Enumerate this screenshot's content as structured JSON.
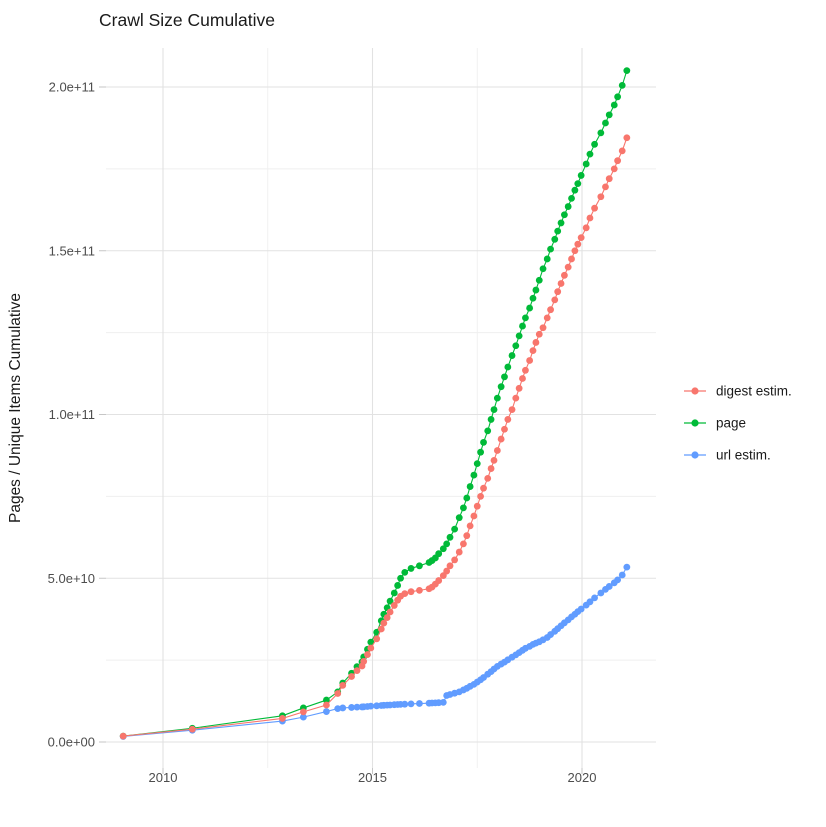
{
  "page": {
    "background": "#ffffff",
    "kind": "static ggplot-style chart image"
  },
  "chart_data": {
    "type": "scatter",
    "title": "Crawl Size Cumulative",
    "xlabel": "",
    "ylabel": "Pages / Unique Items Cumulative",
    "x_unit": "year (decimal)",
    "y_unit": "count; values_e9 are in billions (1e9)",
    "grid": true,
    "legend_position": "right",
    "xlim": [
      2008.6,
      2021.8
    ],
    "ylim_e9": [
      -8,
      212
    ],
    "x_major_ticks": [
      2010,
      2015,
      2020
    ],
    "x_tick_labels": [
      "2010",
      "2015",
      "2020"
    ],
    "x_minor_ticks": [
      2012.5,
      2017.5
    ],
    "y_major_ticks_e9": [
      0,
      50,
      100,
      150,
      200
    ],
    "y_tick_labels": [
      "0.0e+00",
      "5.0e+10",
      "1.0e+11",
      "1.5e+11",
      "2.0e+11"
    ],
    "y_minor_ticks_e9": [
      25,
      75,
      125,
      175
    ],
    "x": [
      2009.05,
      2010.7,
      2012.85,
      2013.35,
      2013.9,
      2014.17,
      2014.29,
      2014.5,
      2014.63,
      2014.75,
      2014.79,
      2014.88,
      2014.96,
      2015.1,
      2015.21,
      2015.27,
      2015.35,
      2015.42,
      2015.52,
      2015.6,
      2015.67,
      2015.77,
      2015.92,
      2016.12,
      2016.35,
      2016.42,
      2016.5,
      2016.58,
      2016.69,
      2016.77,
      2016.85,
      2016.96,
      2017.07,
      2017.17,
      2017.25,
      2017.33,
      2017.42,
      2017.5,
      2017.58,
      2017.65,
      2017.75,
      2017.83,
      2017.9,
      2017.98,
      2018.07,
      2018.15,
      2018.23,
      2018.33,
      2018.42,
      2018.5,
      2018.58,
      2018.65,
      2018.75,
      2018.83,
      2018.9,
      2018.98,
      2019.07,
      2019.17,
      2019.25,
      2019.35,
      2019.42,
      2019.5,
      2019.58,
      2019.67,
      2019.75,
      2019.83,
      2019.9,
      2019.98,
      2020.1,
      2020.19,
      2020.3,
      2020.45,
      2020.56,
      2020.65,
      2020.77,
      2020.85,
      2020.96,
      2021.07
    ],
    "series": [
      {
        "name": "digest estim.",
        "color": "#F8766D",
        "values_e9": [
          1.8,
          3.9,
          7.2,
          9.2,
          11.3,
          14.8,
          17.3,
          20.0,
          21.8,
          23.2,
          24.6,
          26.7,
          28.7,
          31.5,
          34.5,
          36.3,
          38.0,
          39.7,
          41.7,
          43.3,
          44.5,
          45.3,
          45.9,
          46.3,
          46.8,
          47.3,
          48.2,
          49.3,
          50.8,
          52.2,
          53.8,
          55.6,
          58.0,
          60.5,
          63.0,
          66.0,
          69.0,
          72.0,
          75.0,
          77.5,
          80.5,
          83.5,
          86.0,
          89.0,
          92.5,
          95.5,
          98.5,
          101.5,
          105.0,
          108.0,
          111.0,
          113.5,
          116.5,
          119.5,
          122.0,
          124.5,
          126.5,
          129.5,
          132.0,
          135.0,
          137.5,
          140.0,
          142.5,
          145.0,
          147.5,
          150.0,
          152.0,
          154.0,
          157.0,
          160.0,
          163.0,
          166.5,
          169.5,
          172.0,
          175.0,
          177.5,
          180.5,
          184.5
        ]
      },
      {
        "name": "page",
        "color": "#00BA38",
        "values_e9": [
          1.8,
          4.2,
          8.0,
          10.4,
          12.8,
          15.3,
          18.0,
          21.0,
          23.0,
          24.5,
          26.0,
          28.3,
          30.5,
          33.5,
          37.0,
          39.0,
          41.0,
          43.0,
          45.5,
          47.8,
          50.0,
          51.8,
          53.0,
          53.8,
          54.8,
          55.4,
          56.2,
          57.5,
          59.0,
          60.5,
          62.5,
          65.0,
          68.5,
          71.5,
          74.5,
          78.0,
          81.5,
          85.0,
          88.5,
          91.5,
          95.0,
          98.5,
          101.5,
          105.0,
          108.5,
          111.5,
          114.5,
          118.0,
          121.0,
          124.0,
          127.0,
          129.5,
          132.5,
          135.5,
          138.0,
          141.0,
          144.5,
          147.5,
          150.5,
          153.5,
          156.0,
          158.5,
          161.0,
          163.5,
          166.0,
          168.5,
          170.5,
          173.0,
          176.5,
          179.5,
          182.5,
          186.0,
          189.0,
          191.5,
          194.5,
          197.0,
          200.5,
          205.0
        ]
      },
      {
        "name": "url estim.",
        "color": "#619CFF",
        "values_e9": [
          1.7,
          3.6,
          6.4,
          7.6,
          9.3,
          10.2,
          10.4,
          10.55,
          10.65,
          10.7,
          10.75,
          10.85,
          10.95,
          11.05,
          11.15,
          11.2,
          11.25,
          11.3,
          11.4,
          11.45,
          11.5,
          11.55,
          11.65,
          11.75,
          11.85,
          11.9,
          11.95,
          12.0,
          12.1,
          14.2,
          14.5,
          14.9,
          15.3,
          15.9,
          16.4,
          17.0,
          17.6,
          18.3,
          19.0,
          19.7,
          20.7,
          21.5,
          22.3,
          23.1,
          23.8,
          24.4,
          25.1,
          25.9,
          26.6,
          27.3,
          28.0,
          28.6,
          29.2,
          29.8,
          30.2,
          30.6,
          31.2,
          31.9,
          32.8,
          33.8,
          34.6,
          35.5,
          36.4,
          37.3,
          38.2,
          39.0,
          39.8,
          40.6,
          41.8,
          42.8,
          44.0,
          45.5,
          46.6,
          47.5,
          48.6,
          49.5,
          51.0,
          53.4
        ]
      }
    ],
    "draw_order": [
      "page",
      "url estim.",
      "digest estim."
    ],
    "legend_items": [
      "digest estim.",
      "page",
      "url estim."
    ],
    "style": {
      "grid_major_color": "#e2e2e2",
      "grid_minor_color": "#efefef",
      "tick_mark_color": "#c6c6c6",
      "point_radius": 3.4,
      "line_width": 1.1
    }
  }
}
